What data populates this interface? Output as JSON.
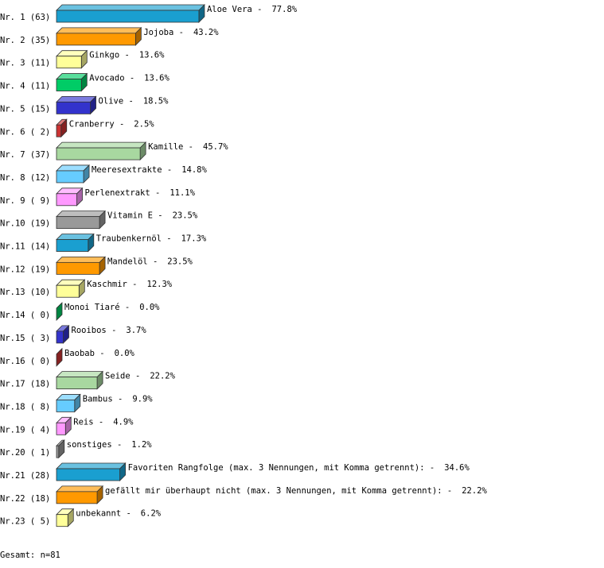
{
  "chart_data": {
    "type": "bar3d",
    "categories": [
      "Nr. 1 (63)",
      "Nr. 2 (35)",
      "Nr. 3 (11)",
      "Nr. 4 (11)",
      "Nr. 5 (15)",
      "Nr. 6 ( 2)",
      "Nr. 7 (37)",
      "Nr. 8 (12)",
      "Nr. 9 ( 9)",
      "Nr.10 (19)",
      "Nr.11 (14)",
      "Nr.12 (19)",
      "Nr.13 (10)",
      "Nr.14 ( 0)",
      "Nr.15 ( 3)",
      "Nr.16 ( 0)",
      "Nr.17 (18)",
      "Nr.18 ( 8)",
      "Nr.19 ( 4)",
      "Nr.20 ( 1)",
      "Nr.21 (28)",
      "Nr.22 (18)",
      "Nr.23 ( 5)"
    ],
    "bar_labels": [
      "Aloe Vera -",
      "Jojoba -",
      "Ginkgo -",
      "Avocado -",
      "Olive -",
      "Cranberry -",
      "Kamille -",
      "Meeresextrakte -",
      "Perlenextrakt -",
      "Vitamin E -",
      "Traubenkernöl -",
      "Mandelöl -",
      "Kaschmir -",
      "Monoi Tiaré -",
      "Rooibos -",
      "Baobab -",
      "Seide -",
      "Bambus -",
      "Reis -",
      "sonstiges -",
      "Favoriten Rangfolge (max. 3 Nennungen, mit Komma getrennt): -",
      "gefällt mir überhaupt nicht (max. 3 Nennungen, mit Komma getrennt): -",
      "unbekannt -"
    ],
    "values": [
      77.8,
      43.2,
      13.6,
      13.6,
      18.5,
      2.5,
      45.7,
      14.8,
      11.1,
      23.5,
      17.3,
      23.5,
      12.3,
      0.0,
      3.7,
      0.0,
      22.2,
      9.9,
      4.9,
      1.2,
      34.6,
      22.2,
      6.2
    ],
    "value_labels": [
      "77.8%",
      "43.2%",
      "13.6%",
      "13.6%",
      "18.5%",
      "2.5%",
      "45.7%",
      "14.8%",
      "11.1%",
      "23.5%",
      "17.3%",
      "23.5%",
      "12.3%",
      "0.0%",
      "3.7%",
      "0.0%",
      "22.2%",
      "9.9%",
      "4.9%",
      "1.2%",
      "34.6%",
      "22.2%",
      "6.2%"
    ],
    "colors": [
      "#1a9fd0",
      "#ff9900",
      "#ffff99",
      "#00cc66",
      "#3333cc",
      "#cc3333",
      "#a8d8a0",
      "#66ccff",
      "#ff99ff",
      "#999999",
      "#1a9fd0",
      "#ff9900",
      "#ffff99",
      "#00cc66",
      "#3333cc",
      "#cc3333",
      "#a8d8a0",
      "#66ccff",
      "#ff99ff",
      "#999999",
      "#1a9fd0",
      "#ff9900",
      "#ffff99"
    ],
    "note": "Gesamt: n=81"
  }
}
